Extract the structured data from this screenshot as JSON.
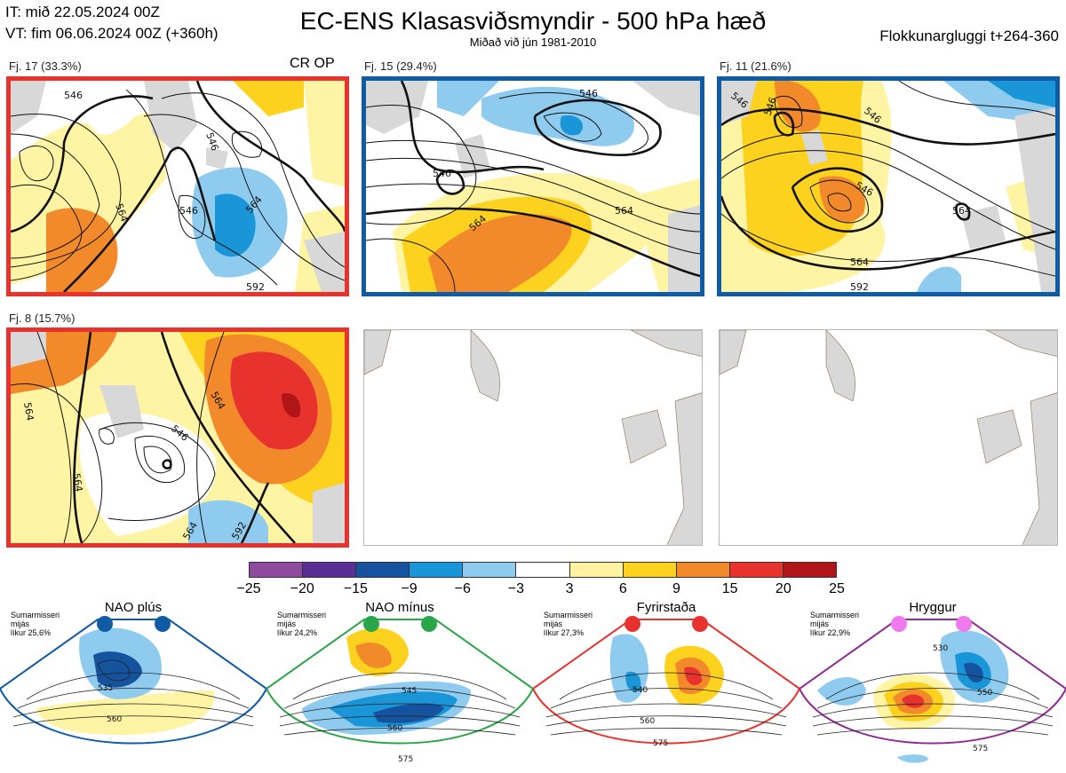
{
  "header": {
    "init_time": "IT: mið 22.05.2024 00Z",
    "valid_time": "VT: fim 06.06.2024 00Z  (+360h)",
    "title": "EC-ENS Klasasviðsmyndir - 500 hPa hæð",
    "subtitle": "Miðað við jún 1981-2010",
    "window": "Flokkunargluggi t+264-360"
  },
  "clusters": [
    {
      "label": "Fj. 17 (33.3%)",
      "op_marker": "CR OP",
      "border_color": "#e8322e",
      "contour_labels": [
        "546",
        "546",
        "546",
        "564",
        "564",
        "592"
      ]
    },
    {
      "label": "Fj. 15 (29.4%)",
      "border_color": "#0f5ba6",
      "contour_labels": [
        "546",
        "546",
        "564",
        "564"
      ]
    },
    {
      "label": "Fj. 11 (21.6%)",
      "border_color": "#0f5ba6",
      "contour_labels": [
        "546",
        "546",
        "546",
        "546",
        "564",
        "564",
        "592"
      ]
    },
    {
      "label": "Fj. 8 (15.7%)",
      "border_color": "#e8322e",
      "contour_labels": [
        "546",
        "564",
        "564",
        "564",
        "564",
        "592"
      ]
    }
  ],
  "colorbar": {
    "ticks": [
      "−25",
      "−20",
      "−15",
      "−9",
      "−6",
      "−3",
      "3",
      "6",
      "9",
      "15",
      "20",
      "25"
    ],
    "colors": [
      "#8e4b9e",
      "#5a2f94",
      "#15539f",
      "#1a95d8",
      "#8ecbef",
      "#ffffff",
      "#fff2a0",
      "#fcd21f",
      "#f28a2b",
      "#e8322e",
      "#b01518"
    ]
  },
  "regimes": [
    {
      "name": "NAO plús",
      "stats_lines": [
        "Sumarmisseri",
        "mijás",
        "líkur 25,6%"
      ],
      "border_color": "#0f5ba6",
      "dot_color": "#0f5ba6",
      "contour_labels": [
        "535",
        "560"
      ]
    },
    {
      "name": "NAO mínus",
      "stats_lines": [
        "Sumarmisseri",
        "mijás",
        "líkur 24,2%"
      ],
      "border_color": "#2aa54a",
      "dot_color": "#2aa54a",
      "contour_labels": [
        "545",
        "560",
        "575"
      ]
    },
    {
      "name": "Fyrirstaða",
      "stats_lines": [
        "Sumarmisseri",
        "mijás",
        "líkur 27,3%"
      ],
      "border_color": "#e8322e",
      "dot_color": "#e8322e",
      "contour_labels": [
        "540",
        "560",
        "575"
      ]
    },
    {
      "name": "Hryggur",
      "stats_lines": [
        "Sumarmisseri",
        "mijás",
        "líkur 22,9%"
      ],
      "border_color": "#8e2c92",
      "dot_color": "#ee7aee",
      "contour_labels": [
        "530",
        "550",
        "575"
      ]
    }
  ]
}
